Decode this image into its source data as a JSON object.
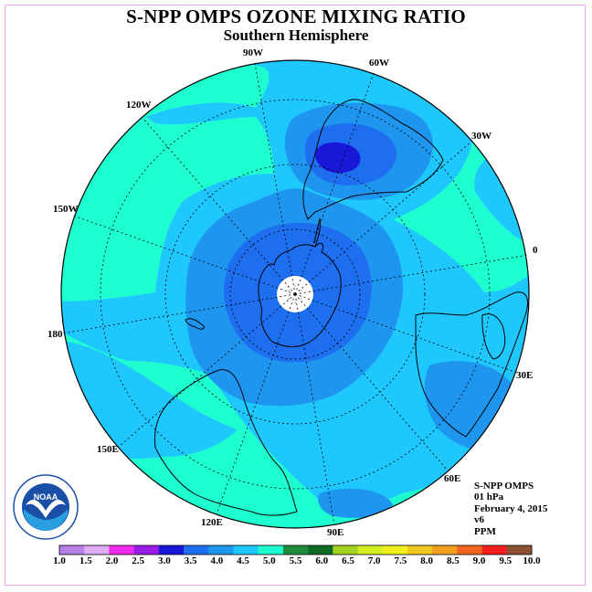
{
  "title": "S-NPP OMPS OZONE MIXING RATIO",
  "subtitle": "Southern Hemisphere",
  "longitude_labels": {
    "lon_90w": "90W",
    "lon_60w": "60W",
    "lon_30w": "30W",
    "lon_0": "0",
    "lon_30e": "30E",
    "lon_60e": "60E",
    "lon_90e": "90E",
    "lon_120e": "120E",
    "lon_150e": "150E",
    "lon_180": "180",
    "lon_150w": "150W",
    "lon_120w": "120W"
  },
  "info": {
    "instrument": "S-NPP OMPS",
    "level": "01 hPa",
    "date": "February 4, 2015",
    "version": "v6",
    "units": "PPM"
  },
  "logo_text": "NOAA",
  "colorbar": {
    "ticks": [
      "1.0",
      "1.5",
      "2.0",
      "2.5",
      "3.0",
      "3.5",
      "4.0",
      "4.5",
      "5.0",
      "5.5",
      "6.0",
      "6.5",
      "7.0",
      "7.5",
      "8.0",
      "8.5",
      "9.0",
      "9.5",
      "10.0"
    ],
    "colors": [
      "#b77fe8",
      "#dcabf1",
      "#ee2cee",
      "#9b1ee8",
      "#1818d8",
      "#1e6ef0",
      "#1e96f0",
      "#1ec8ff",
      "#1effd0",
      "#1e8c3c",
      "#0f6a28",
      "#a0d21e",
      "#d2f01e",
      "#f0f01e",
      "#f0c81e",
      "#f0a01e",
      "#f0641e",
      "#f01e1e",
      "#8c5032"
    ]
  },
  "map_colors": {
    "level_2_5_3_0": "#1818d8",
    "level_3_0_3_5": "#1e6ef0",
    "level_3_5_4_0": "#1e96f0",
    "level_4_0_4_5": "#1ec8ff",
    "level_4_5_5_0": "#1effd0",
    "pole_missing": "#ffffff"
  }
}
